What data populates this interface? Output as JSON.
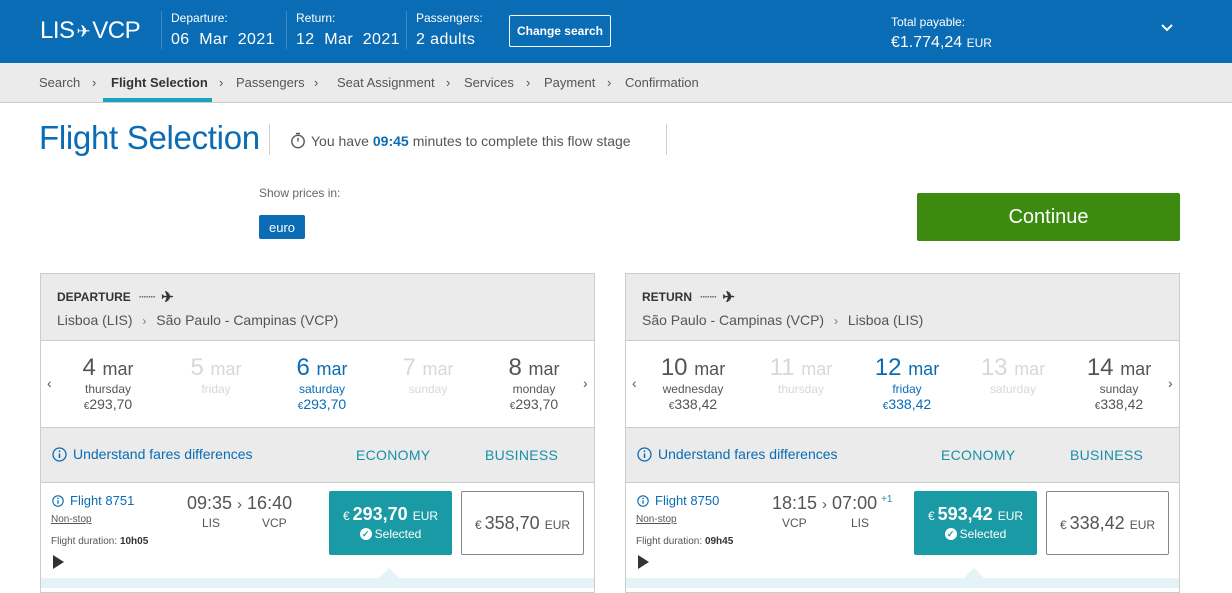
{
  "header": {
    "origin": "LIS",
    "destination": "VCP",
    "departure_label": "Departure:",
    "departure_value": "06  Mar  2021",
    "return_label": "Return:",
    "return_value": "12  Mar  2021",
    "passengers_label": "Passengers:",
    "passengers_value": "2 adults",
    "change_search": "Change search",
    "total_label": "Total payable:",
    "total_currency_symbol": "€",
    "total_amount": "1.774,24",
    "total_currency": "EUR",
    "brand_color": "#0a6cb5"
  },
  "breadcrumb": [
    "Search",
    "Flight Selection",
    "Passengers",
    "Seat Assignment",
    "Services",
    "Payment",
    "Confirmation"
  ],
  "page": {
    "title": "Flight Selection",
    "timer_prefix": "You have",
    "timer_value": "09:45",
    "timer_suffix": "minutes to complete this flow stage",
    "show_prices_label": "Show prices in:",
    "currency_option": "euro",
    "continue_label": "Continue",
    "continue_color": "#3c8a0f"
  },
  "departure": {
    "heading": "DEPARTURE",
    "from": "Lisboa (LIS)",
    "to": "São Paulo - Campinas (VCP)",
    "days": [
      {
        "num": "4",
        "mon": "mar",
        "weekday": "thursday",
        "cur": "€",
        "price": "293,70"
      },
      {
        "num": "5",
        "mon": "mar",
        "weekday": "friday",
        "cur": "",
        "price": ""
      },
      {
        "num": "6",
        "mon": "mar",
        "weekday": "saturday",
        "cur": "€",
        "price": "293,70"
      },
      {
        "num": "7",
        "mon": "mar",
        "weekday": "sunday",
        "cur": "",
        "price": ""
      },
      {
        "num": "8",
        "mon": "mar",
        "weekday": "monday",
        "cur": "€",
        "price": "293,70"
      }
    ],
    "fare_info": "Understand fares differences",
    "fare_economy": "ECONOMY",
    "fare_business": "BUSINESS",
    "flight_no": "Flight 8751",
    "nonstop": "Non-stop",
    "dep_time": "09:35",
    "arr_time": "16:40",
    "arr_day_offset": "",
    "dep_iata": "LIS",
    "arr_iata": "VCP",
    "duration_label": "Flight duration:",
    "duration": "10h05",
    "economy_cur": "€",
    "economy_price": "293,70",
    "economy_ccy": "EUR",
    "selected_label": "Selected",
    "business_cur": "€",
    "business_price": "358,70",
    "business_ccy": "EUR"
  },
  "return": {
    "heading": "RETURN",
    "from": "São Paulo - Campinas (VCP)",
    "to": "Lisboa (LIS)",
    "days": [
      {
        "num": "10",
        "mon": "mar",
        "weekday": "wednesday",
        "cur": "€",
        "price": "338,42"
      },
      {
        "num": "11",
        "mon": "mar",
        "weekday": "thursday",
        "cur": "",
        "price": ""
      },
      {
        "num": "12",
        "mon": "mar",
        "weekday": "friday",
        "cur": "€",
        "price": "338,42"
      },
      {
        "num": "13",
        "mon": "mar",
        "weekday": "saturday",
        "cur": "",
        "price": ""
      },
      {
        "num": "14",
        "mon": "mar",
        "weekday": "sunday",
        "cur": "€",
        "price": "338,42"
      }
    ],
    "fare_info": "Understand fares differences",
    "fare_economy": "ECONOMY",
    "fare_business": "BUSINESS",
    "flight_no": "Flight 8750",
    "nonstop": "Non-stop",
    "dep_time": "18:15",
    "arr_time": "07:00",
    "arr_day_offset": "+1",
    "dep_iata": "VCP",
    "arr_iata": "LIS",
    "duration_label": "Flight duration:",
    "duration": "09h45",
    "economy_cur": "€",
    "economy_price": "593,42",
    "economy_ccy": "EUR",
    "selected_label": "Selected",
    "business_cur": "€",
    "business_price": "338,42",
    "business_ccy": "EUR"
  }
}
